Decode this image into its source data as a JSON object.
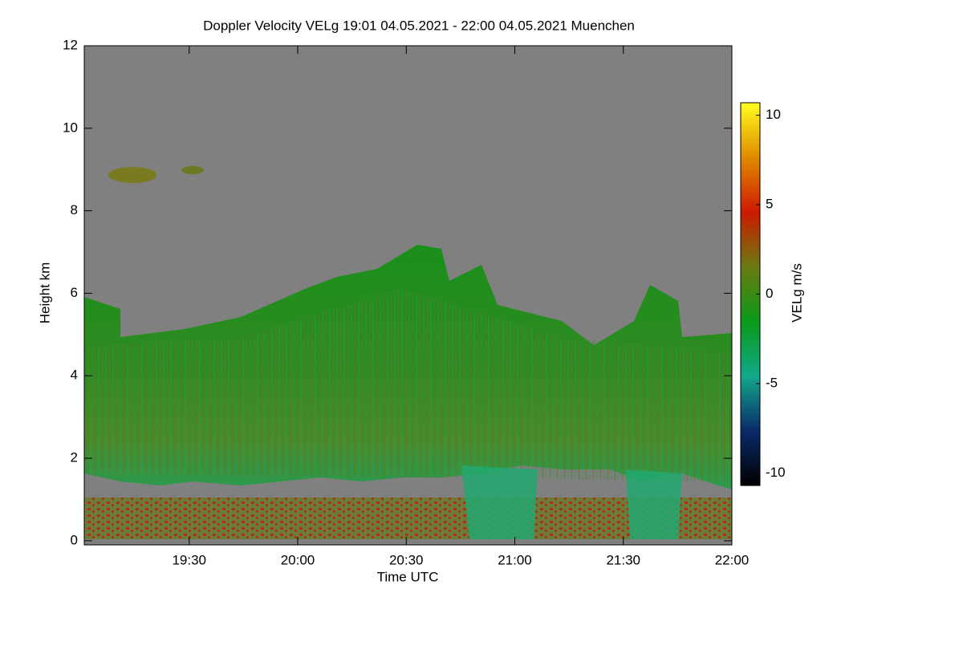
{
  "chart_data": {
    "type": "time-height",
    "title": "Doppler Velocity VELg   19:01 04.05.2021 - 22:00 04.05.2021 Muenchen",
    "x_label": "Time UTC",
    "y_label": "Height km",
    "xlim": [
      1141,
      1320
    ],
    "xticks": [
      {
        "value": 1170,
        "label": "19:30"
      },
      {
        "value": 1200,
        "label": "20:00"
      },
      {
        "value": 1230,
        "label": "20:30"
      },
      {
        "value": 1260,
        "label": "21:00"
      },
      {
        "value": 1290,
        "label": "21:30"
      },
      {
        "value": 1320,
        "label": "22:00"
      }
    ],
    "ylim": [
      -0.1,
      12
    ],
    "yticks": [
      0,
      2,
      4,
      6,
      8,
      10,
      12
    ],
    "colorbar": {
      "label": "VELg m/s",
      "lim": [
        -10.7,
        10.7
      ],
      "ticks": [
        -10,
        -5,
        0,
        5,
        10
      ],
      "colors": [
        "#000000",
        "#0a2a6a",
        "#12a88a",
        "#0a9a1a",
        "#6a7a10",
        "#cc1a00",
        "#e08a00",
        "#ffff20"
      ]
    }
  }
}
